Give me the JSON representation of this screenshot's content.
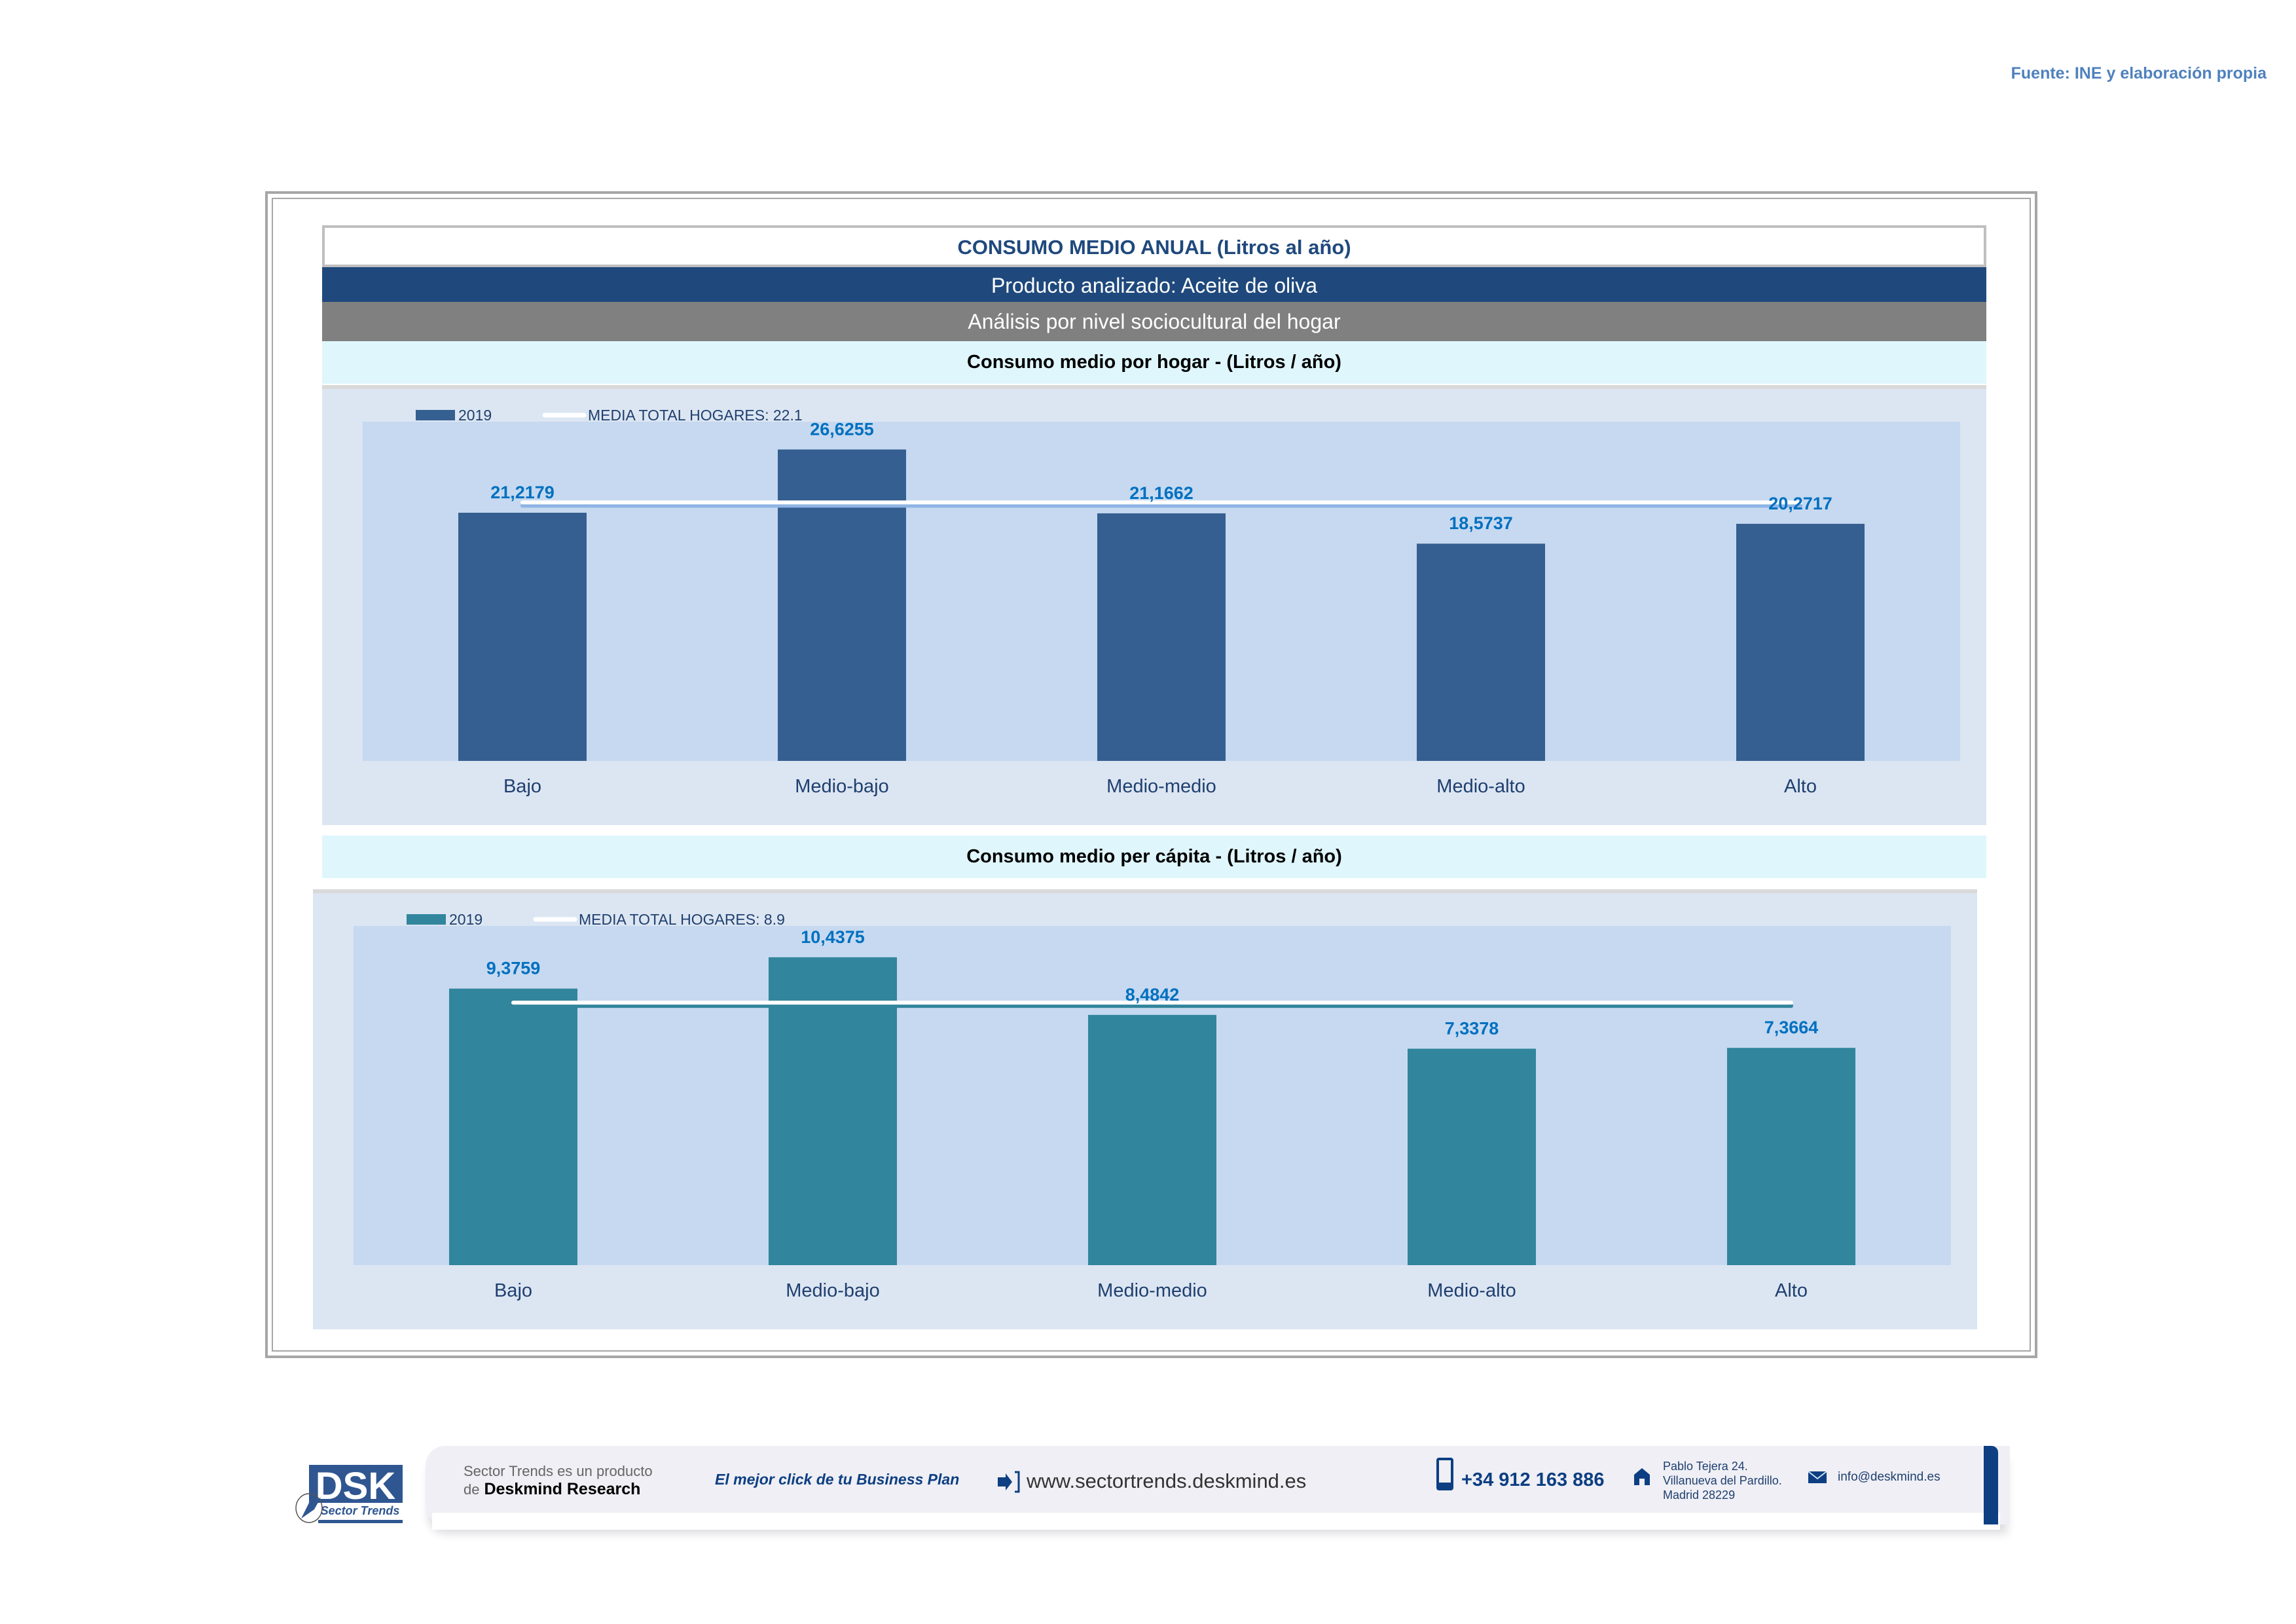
{
  "source_note": "Fuente: INE y elaboración propia",
  "header": {
    "title": "CONSUMO MEDIO ANUAL (Litros al año)",
    "product": "Producto analizado: Aceite de oliva",
    "analysis": "Análisis por nivel sociocultural del hogar"
  },
  "chart_data": [
    {
      "type": "bar",
      "title": "Consumo medio por hogar -  (Litros / año)",
      "categories": [
        "Bajo",
        "Medio-bajo",
        "Medio-medio",
        "Medio-alto",
        "Alto"
      ],
      "series": [
        {
          "name": "2019",
          "values": [
            21.2179,
            26.6255,
            21.1662,
            18.5737,
            20.2717
          ],
          "color": "#355f91"
        }
      ],
      "value_labels": [
        "21,2179",
        "26,6255",
        "21,1662",
        "18,5737",
        "20,2717"
      ],
      "reference_line": {
        "label": "MEDIA TOTAL  HOGARES:",
        "value": 22.1,
        "value_label": "22.1"
      },
      "ylim": [
        0,
        29
      ],
      "xlabel": "",
      "ylabel": "",
      "grid": false,
      "legend": "top-left"
    },
    {
      "type": "bar",
      "title": "Consumo medio per cápita -  (Litros / año)",
      "categories": [
        "Bajo",
        "Medio-bajo",
        "Medio-medio",
        "Medio-alto",
        "Alto"
      ],
      "series": [
        {
          "name": "2019",
          "values": [
            9.3759,
            10.4375,
            8.4842,
            7.3378,
            7.3664
          ],
          "color": "#31859c"
        }
      ],
      "value_labels": [
        "9,3759",
        "10,4375",
        "8,4842",
        "7,3378",
        "7,3664"
      ],
      "reference_line": {
        "label": "MEDIA TOTAL  HOGARES:",
        "value": 8.9,
        "value_label": "8.9"
      },
      "ylim": [
        0,
        11.5
      ],
      "xlabel": "",
      "ylabel": "",
      "grid": false,
      "legend": "top-left"
    }
  ],
  "footer": {
    "logo_text": "DSK",
    "logo_sub": "Sector Trends",
    "product_line1": "Sector Trends es un producto",
    "product_de": "de",
    "product_company": "Deskmind Research",
    "slogan": "El mejor click de tu Business Plan",
    "website": "www.sectortrends.deskmind.es",
    "phone": "+34 912 163 886",
    "address_line1": "Pablo Tejera 24.",
    "address_line2": "Villanueva del Pardillo.",
    "address_line3": "Madrid 28229",
    "email": "info@deskmind.es"
  },
  "colors": {
    "label_blue": "#0070c0",
    "axis_text": "#1f3f6f",
    "plot_bg": "#c6d9f0",
    "chart_bg": "#dce6f2"
  }
}
